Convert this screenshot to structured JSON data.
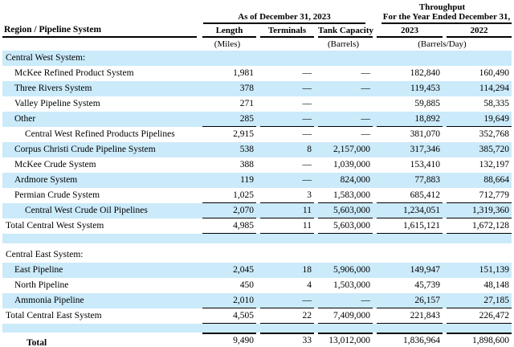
{
  "colors": {
    "stripe": "#cbeafa",
    "rule": "#000000",
    "text": "#000000"
  },
  "header": {
    "throughput_title": "Throughput",
    "as_of_title": "As of December 31, 2023",
    "period_title": "For the Year Ended December 31,"
  },
  "columns": {
    "region": "Region / Pipeline System",
    "length": "Length",
    "terminals": "Terminals",
    "tank": "Tank Capacity",
    "y2023": "2023",
    "y2022": "2022",
    "length_unit": "(Miles)",
    "tank_unit": "(Barrels)",
    "throughput_unit": "(Barrels/Day)"
  },
  "rows": [
    {
      "type": "section",
      "label": "Central West System:",
      "shade": true
    },
    {
      "type": "data",
      "label": "McKee Refined Product System",
      "indent": 1,
      "shade": false,
      "cells": [
        "1,981",
        "—",
        "—",
        "182,840",
        "160,490"
      ]
    },
    {
      "type": "data",
      "label": "Three Rivers System",
      "indent": 1,
      "shade": true,
      "cells": [
        "378",
        "—",
        "—",
        "119,453",
        "114,294"
      ]
    },
    {
      "type": "data",
      "label": "Valley Pipeline System",
      "indent": 1,
      "shade": false,
      "cells": [
        "271",
        "—",
        "",
        "59,885",
        "58,335"
      ]
    },
    {
      "type": "data",
      "label": "Other",
      "indent": 1,
      "shade": true,
      "cells": [
        "285",
        "—",
        "—",
        "18,892",
        "19,649"
      ],
      "rule": "bottom"
    },
    {
      "type": "data",
      "label": "Central West Refined Products Pipelines",
      "indent": 2,
      "shade": false,
      "cells": [
        "2,915",
        "—",
        "—",
        "381,070",
        "352,768"
      ]
    },
    {
      "type": "data",
      "label": "Corpus Christi Crude Pipeline System",
      "indent": 1,
      "shade": true,
      "cells": [
        "538",
        "8",
        "2,157,000",
        "317,346",
        "385,720"
      ]
    },
    {
      "type": "data",
      "label": "McKee Crude System",
      "indent": 1,
      "shade": false,
      "cells": [
        "388",
        "—",
        "1,039,000",
        "153,410",
        "132,197"
      ]
    },
    {
      "type": "data",
      "label": "Ardmore System",
      "indent": 1,
      "shade": true,
      "cells": [
        "119",
        "—",
        "824,000",
        "77,883",
        "88,664"
      ]
    },
    {
      "type": "data",
      "label": "Permian Crude System",
      "indent": 1,
      "shade": false,
      "cells": [
        "1,025",
        "3",
        "1,583,000",
        "685,412",
        "712,779"
      ],
      "rule": "bottom"
    },
    {
      "type": "data",
      "label": "Central West Crude Oil Pipelines",
      "indent": 2,
      "shade": true,
      "cells": [
        "2,070",
        "11",
        "5,603,000",
        "1,234,051",
        "1,319,360"
      ],
      "rule": "bottom"
    },
    {
      "type": "data",
      "label": "Total Central West System",
      "indent": 0,
      "shade": false,
      "cells": [
        "4,985",
        "11",
        "5,603,000",
        "1,615,121",
        "1,672,128"
      ],
      "rule": "bottom"
    },
    {
      "type": "spacer",
      "shade": true,
      "height": 12
    },
    {
      "type": "spacer",
      "shade": false,
      "height": 5
    },
    {
      "type": "section",
      "label": "Central East System:",
      "shade": false
    },
    {
      "type": "data",
      "label": "East Pipeline",
      "indent": 1,
      "shade": true,
      "cells": [
        "2,045",
        "18",
        "5,906,000",
        "149,947",
        "151,139"
      ]
    },
    {
      "type": "data",
      "label": "North Pipeline",
      "indent": 1,
      "shade": false,
      "cells": [
        "450",
        "4",
        "1,503,000",
        "45,739",
        "48,148"
      ]
    },
    {
      "type": "data",
      "label": "Ammonia Pipeline",
      "indent": 1,
      "shade": true,
      "cells": [
        "2,010",
        "—",
        "—",
        "26,157",
        "27,185"
      ],
      "rule": "bottom"
    },
    {
      "type": "data",
      "label": "Total Central East System",
      "indent": 0,
      "shade": false,
      "cells": [
        "4,505",
        "22",
        "7,409,000",
        "221,843",
        "226,472"
      ],
      "rule": "bottom"
    },
    {
      "type": "spacer",
      "shade": true,
      "height": 11
    },
    {
      "type": "data",
      "label": "Total",
      "indent": 3,
      "bold": true,
      "shade": false,
      "cells": [
        "9,490",
        "33",
        "13,012,000",
        "1,836,964",
        "1,898,600"
      ],
      "rule": "total"
    }
  ]
}
